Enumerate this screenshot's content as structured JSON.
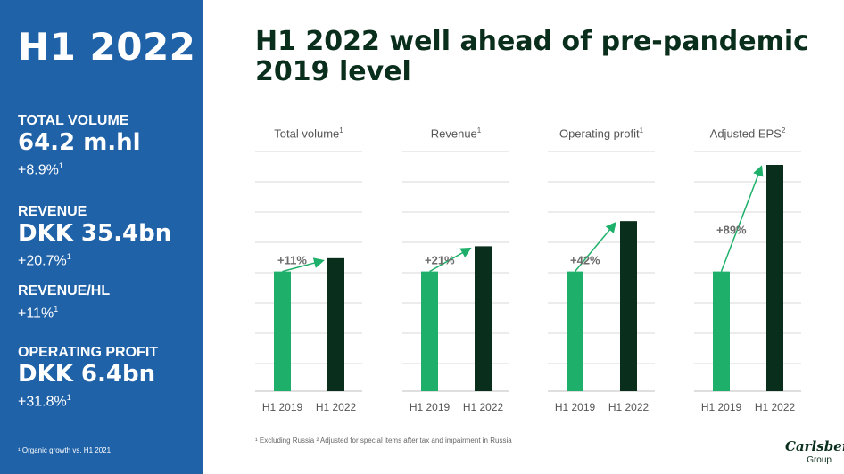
{
  "sidebar": {
    "title": "H1 2022",
    "kpis": [
      {
        "label": "TOTAL VOLUME",
        "value": "64.2 m.hl",
        "change": "+8.9%",
        "note": "1"
      },
      {
        "label": "REVENUE",
        "value": "DKK 35.4bn",
        "change": "+20.7%",
        "note": "1"
      },
      {
        "label": "REVENUE/HL",
        "value": "",
        "change": "+11%",
        "note": "1"
      },
      {
        "label": "OPERATING PROFIT",
        "value": "DKK 6.4bn",
        "change": "+31.8%",
        "note": "1"
      }
    ],
    "footnote": "¹ Organic growth vs. H1 2021"
  },
  "headline": "H1 2022 well ahead of pre-pandemic 2019 level",
  "colors": {
    "sidebar": "#1f62a8",
    "h1_2019": "#1eb06a",
    "h1_2022": "#0a2e1c",
    "arrow": "#1eb06a",
    "grid": "#d9d9d9"
  },
  "chart_data": [
    {
      "type": "bar",
      "title": "Total volume",
      "title_note": "1",
      "categories": [
        "H1 2019",
        "H1 2022"
      ],
      "values": [
        100,
        111
      ],
      "change_label": "+11%"
    },
    {
      "type": "bar",
      "title": "Revenue",
      "title_note": "1",
      "categories": [
        "H1 2019",
        "H1 2022"
      ],
      "values": [
        100,
        121
      ],
      "change_label": "+21%"
    },
    {
      "type": "bar",
      "title": "Operating profit",
      "title_note": "1",
      "categories": [
        "H1 2019",
        "H1 2022"
      ],
      "values": [
        100,
        142
      ],
      "change_label": "+42%"
    },
    {
      "type": "bar",
      "title": "Adjusted EPS",
      "title_note": "2",
      "categories": [
        "H1 2019",
        "H1 2022"
      ],
      "values": [
        100,
        189
      ],
      "change_label": "+89%"
    }
  ],
  "footnote": "¹ Excluding Russia   ² Adjusted for special items after tax and impairment in Russia",
  "logo": {
    "word": "Carlsberg",
    "sub": "Group"
  }
}
